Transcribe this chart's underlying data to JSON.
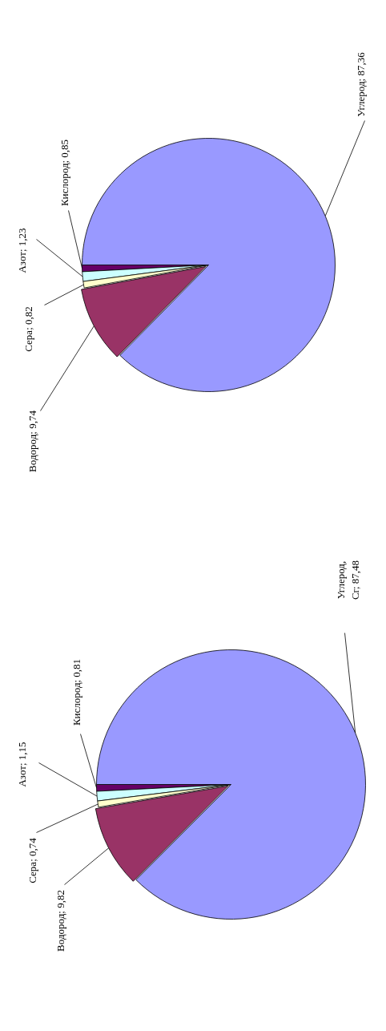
{
  "chart_data": [
    {
      "type": "pie",
      "categories": [
        "Кислород",
        "Азот",
        "Сера",
        "Водород",
        "Углерод"
      ],
      "values": [
        0.85,
        1.23,
        0.82,
        9.74,
        87.36
      ],
      "colors": [
        "#660066",
        "#ccffff",
        "#ffffcc",
        "#993366",
        "#9999ff"
      ],
      "data_labels": true,
      "value_labels": [
        "0,85",
        "1,23",
        "0,82",
        "9,74",
        "87,36"
      ]
    },
    {
      "type": "pie",
      "categories": [
        "Кислород",
        "Азот",
        "Сера",
        "Водород",
        "Углерод, Cr"
      ],
      "values": [
        0.81,
        1.15,
        0.74,
        9.82,
        87.48
      ],
      "colors": [
        "#660066",
        "#ccffff",
        "#ffffcc",
        "#993366",
        "#9999ff"
      ],
      "data_labels": true,
      "value_labels": [
        "0,81",
        "1,15",
        "0,74",
        "9,82",
        "87,48"
      ]
    }
  ]
}
